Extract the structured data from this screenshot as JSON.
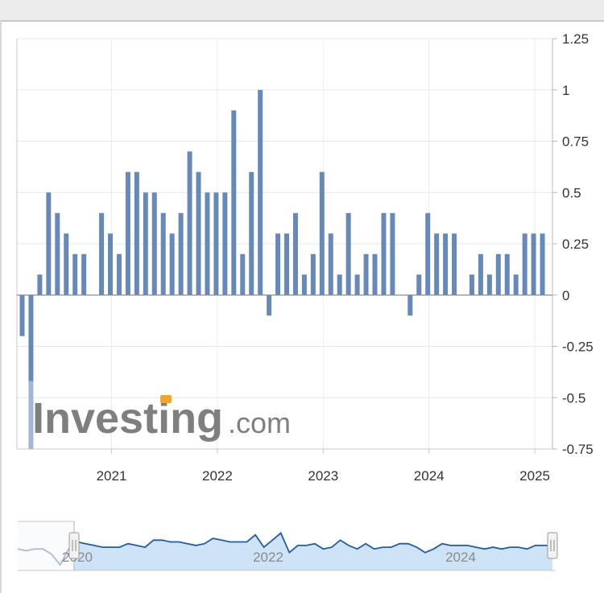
{
  "chart_data": {
    "type": "bar",
    "title": "",
    "xlabel": "",
    "ylabel": "",
    "ylim": [
      -0.75,
      1.25
    ],
    "y_ticks": [
      "1.25",
      "1",
      "0.75",
      "0.5",
      "0.25",
      "0",
      "-0.25",
      "-0.5",
      "-0.75"
    ],
    "x_ticks": [
      "2021",
      "2022",
      "2023",
      "2024",
      "2025"
    ],
    "grid": true,
    "bar_color": "#6589b9",
    "start_month": "2020-03",
    "values": [
      -0.2,
      -0.8,
      0.1,
      0.5,
      0.4,
      0.3,
      0.2,
      0.2,
      null,
      0.4,
      0.3,
      0.2,
      0.6,
      0.6,
      0.5,
      0.5,
      0.4,
      0.3,
      0.4,
      0.7,
      0.6,
      0.5,
      0.5,
      0.5,
      0.9,
      0.2,
      0.6,
      1.0,
      -0.1,
      0.3,
      0.3,
      0.4,
      0.1,
      0.2,
      0.6,
      0.3,
      0.1,
      0.4,
      0.1,
      0.2,
      0.2,
      0.4,
      0.4,
      null,
      -0.1,
      0.1,
      0.4,
      0.3,
      0.3,
      0.3,
      null,
      0.1,
      0.2,
      0.1,
      0.2,
      0.2,
      0.1,
      0.3,
      0.3,
      0.3
    ]
  },
  "navigator": {
    "labels": [
      "2020",
      "2022",
      "2024"
    ],
    "line_color": "#1f5da8",
    "fill_color": "#cfe3f7"
  },
  "watermark": {
    "main": "Investing",
    "suffix": ".com",
    "accent_color": "#f5a623"
  }
}
